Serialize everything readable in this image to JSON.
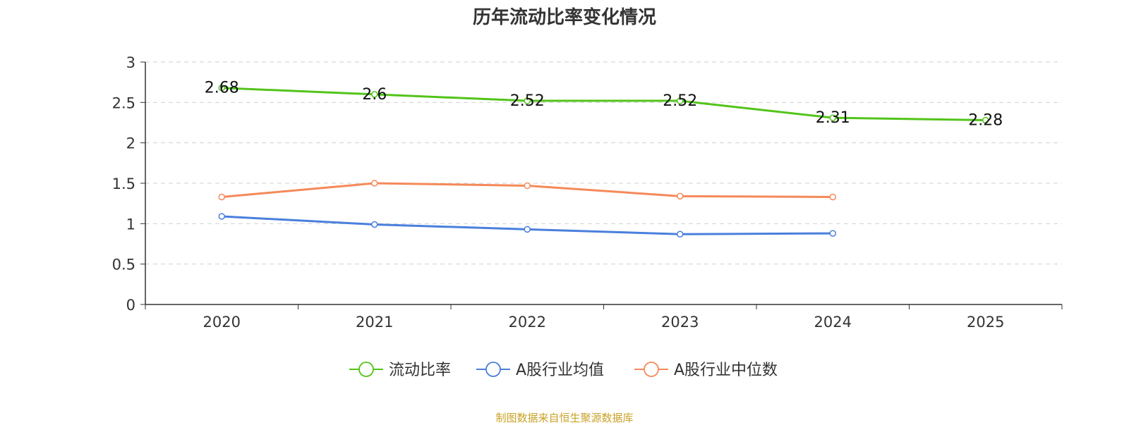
{
  "chart_data": {
    "type": "line",
    "title": "历年流动比率变化情况",
    "categories": [
      "2020",
      "2021",
      "2022",
      "2023",
      "2024",
      "2025"
    ],
    "ylim": [
      0,
      3
    ],
    "yticks": [
      0,
      0.5,
      1,
      1.5,
      2,
      2.5,
      3
    ],
    "ytick_labels": [
      "0",
      "0.5",
      "1",
      "1.5",
      "2",
      "2.5",
      "3"
    ],
    "grid": true,
    "legend_position": "bottom-center",
    "series": [
      {
        "name": "流动比率",
        "color": "#52c41a",
        "values": [
          2.68,
          2.6,
          2.52,
          2.52,
          2.31,
          2.28
        ],
        "labels": [
          "2.68",
          "2.6",
          "2.52",
          "2.52",
          "2.31",
          "2.28"
        ]
      },
      {
        "name": "A股行业均值",
        "color": "#4a7fdc",
        "values": [
          1.09,
          0.99,
          0.93,
          0.87,
          0.88,
          null
        ]
      },
      {
        "name": "A股行业中位数",
        "color": "#f5895a",
        "values": [
          1.33,
          1.5,
          1.47,
          1.34,
          1.33,
          null
        ]
      }
    ],
    "source": "制图数据来自恒生聚源数据库"
  }
}
